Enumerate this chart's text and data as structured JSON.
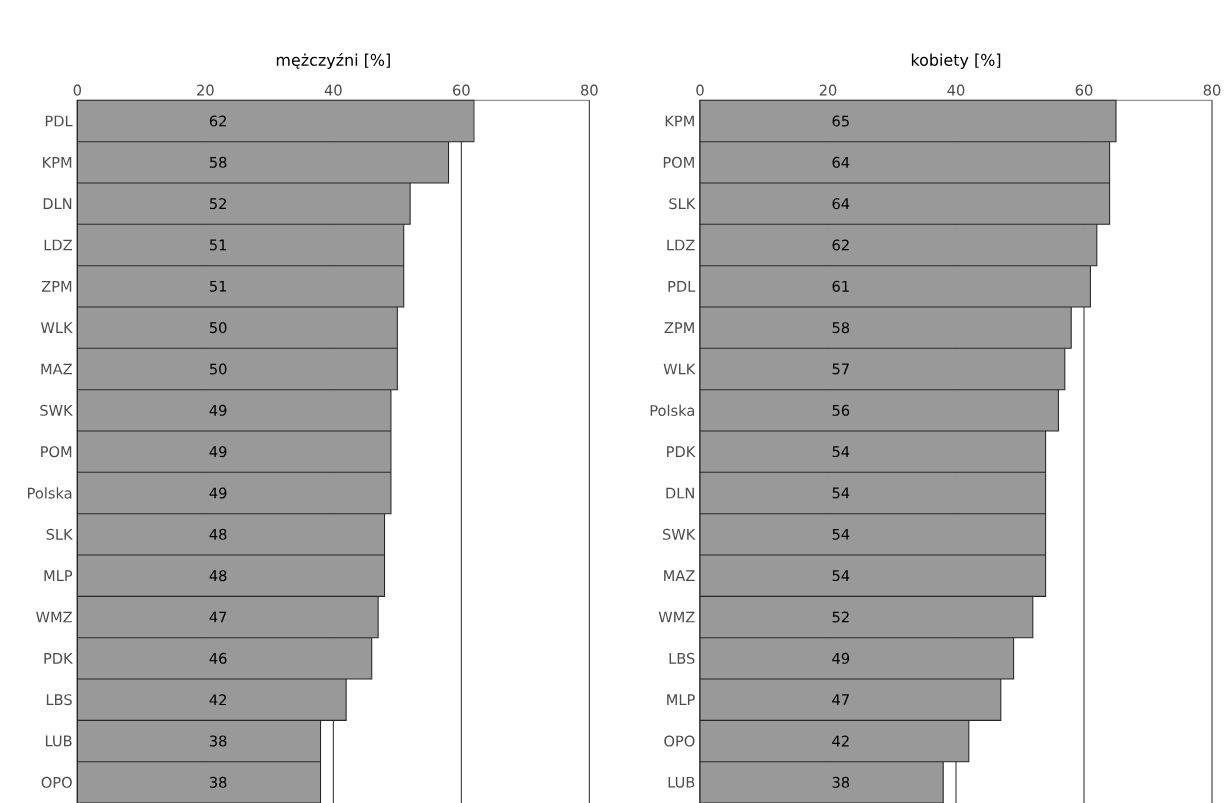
{
  "chart_data": [
    {
      "type": "bar",
      "orientation": "horizontal",
      "title": "mężczyźni [%]",
      "categories": [
        "PDL",
        "KPM",
        "DLN",
        "LDZ",
        "ZPM",
        "WLK",
        "MAZ",
        "SWK",
        "POM",
        "Polska",
        "SLK",
        "MLP",
        "WMZ",
        "PDK",
        "LBS",
        "LUB",
        "OPO"
      ],
      "values": [
        62,
        58,
        52,
        51,
        51,
        50,
        50,
        49,
        49,
        49,
        48,
        48,
        47,
        46,
        42,
        38,
        38
      ],
      "color": "#999999",
      "xlim": [
        0,
        80
      ],
      "xticks": [
        0,
        20,
        40,
        60,
        80
      ],
      "grid": "x",
      "data_labels": true
    },
    {
      "type": "bar",
      "orientation": "horizontal",
      "title": "kobiety [%]",
      "categories": [
        "KPM",
        "POM",
        "SLK",
        "LDZ",
        "PDL",
        "ZPM",
        "WLK",
        "Polska",
        "PDK",
        "DLN",
        "SWK",
        "MAZ",
        "WMZ",
        "LBS",
        "MLP",
        "OPO",
        "LUB"
      ],
      "values": [
        65,
        64,
        64,
        62,
        61,
        58,
        57,
        56,
        54,
        54,
        54,
        54,
        52,
        49,
        47,
        42,
        38
      ],
      "color": "#999999",
      "xlim": [
        0,
        80
      ],
      "xticks": [
        0,
        20,
        40,
        60,
        80
      ],
      "grid": "x",
      "data_labels": true
    }
  ]
}
